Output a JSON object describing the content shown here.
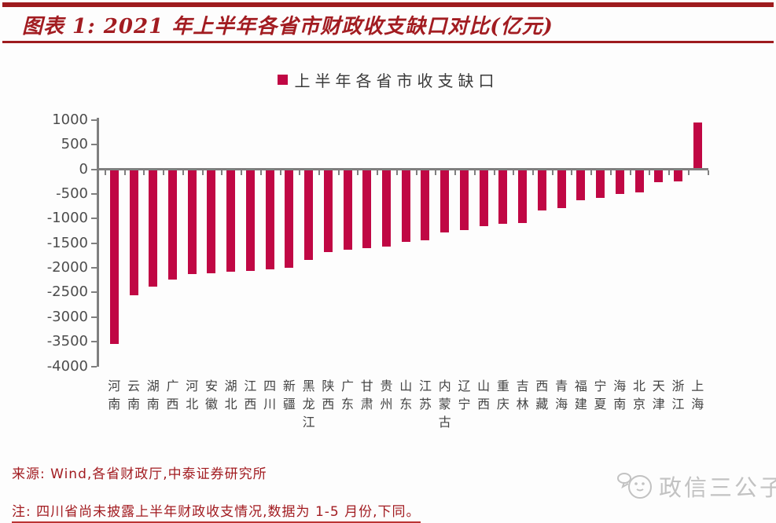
{
  "header": {
    "title": "图表 1: 2021 年上半年各省市财政收支缺口对比(亿元)"
  },
  "legend": {
    "label": "上半年各省市收支缺口",
    "marker_color": "#C00744"
  },
  "chart_data": {
    "type": "bar",
    "title": "2021 年上半年各省市财政收支缺口对比(亿元)",
    "series_name": "上半年各省市收支缺口",
    "categories": [
      "河南",
      "云南",
      "湖南",
      "广西",
      "河北",
      "安徽",
      "湖北",
      "江西",
      "四川",
      "新疆",
      "黑龙江",
      "陕西",
      "广东",
      "甘肃",
      "贵州",
      "山东",
      "江苏",
      "内蒙古",
      "辽宁",
      "山西",
      "重庆",
      "吉林",
      "西藏",
      "青海",
      "福建",
      "宁夏",
      "海南",
      "北京",
      "天津",
      "浙江",
      "上海"
    ],
    "values": [
      -3520,
      -2530,
      -2350,
      -2220,
      -2100,
      -2080,
      -2050,
      -2040,
      -2000,
      -1970,
      -1820,
      -1660,
      -1600,
      -1580,
      -1550,
      -1450,
      -1420,
      -1260,
      -1210,
      -1130,
      -1080,
      -1070,
      -810,
      -770,
      -610,
      -550,
      -470,
      -450,
      -240,
      -220,
      930
    ],
    "unit": "亿元",
    "ylim": [
      -4000,
      1000
    ],
    "yticks": [
      1000,
      500,
      0,
      -500,
      -1000,
      -1500,
      -2000,
      -2500,
      -3000,
      -3500,
      -4000
    ],
    "bar_color": "#C00744",
    "axis_color": "#7F7F7F",
    "grid": false,
    "legend_position": "top"
  },
  "footer": {
    "source": "来源: Wind,各省财政厅,中泰证券研究所",
    "note": "注: 四川省尚未披露上半年财政收支情况,数据为 1-5 月份,下同。"
  },
  "watermark": {
    "text": "政信三公子"
  },
  "colors": {
    "accent_red": "#A21C21",
    "bar_crimson": "#C00744",
    "axis_gray": "#7F7F7F",
    "watermark_gray": "#C2C2C2"
  }
}
